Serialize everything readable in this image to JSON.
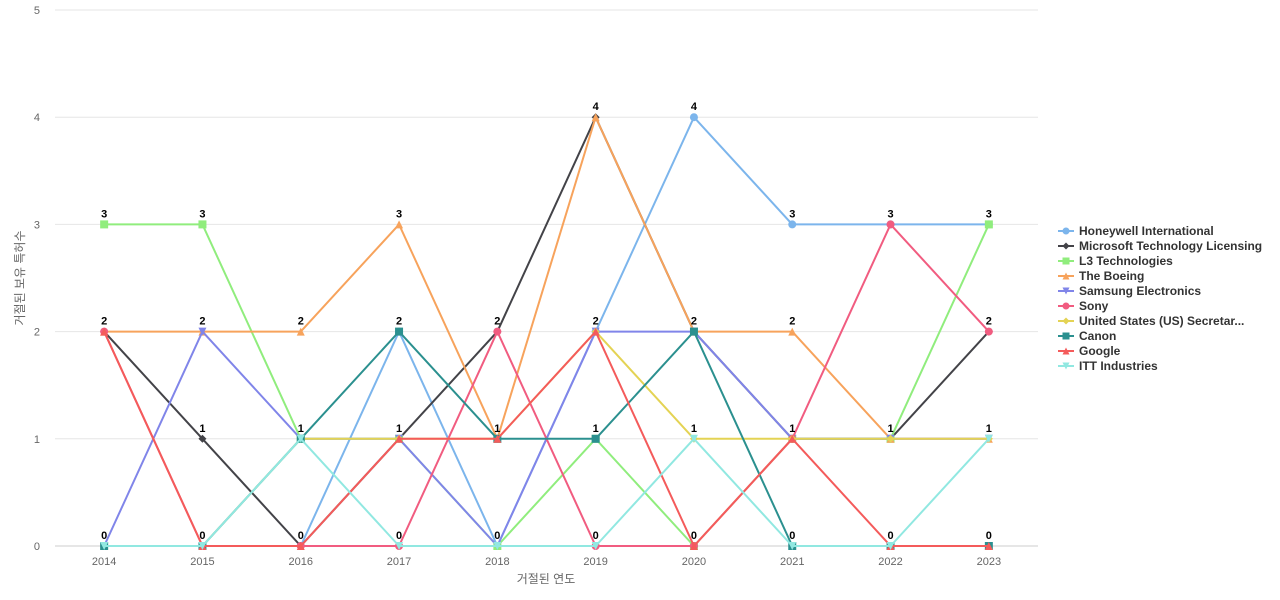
{
  "chart_data": {
    "type": "line",
    "xlabel": "거절된 연도",
    "ylabel": "거절된 보유 특허수",
    "ylim": [
      0,
      5
    ],
    "yticks": [
      0,
      1,
      2,
      3,
      4,
      5
    ],
    "categories": [
      "2014",
      "2015",
      "2016",
      "2017",
      "2018",
      "2019",
      "2020",
      "2021",
      "2022",
      "2023"
    ],
    "grid": true,
    "legend_position": "right",
    "series": [
      {
        "name": "Honeywell International",
        "color": "#7cb5ec",
        "marker": "circle",
        "values": [
          0,
          0,
          0,
          2,
          0,
          2,
          4,
          3,
          3,
          3
        ]
      },
      {
        "name": "Microsoft Technology Licensing",
        "color": "#434348",
        "marker": "diamond",
        "values": [
          2,
          1,
          0,
          1,
          2,
          4,
          2,
          1,
          1,
          2
        ]
      },
      {
        "name": "L3 Technologies",
        "color": "#90ed7d",
        "marker": "square",
        "values": [
          3,
          3,
          1,
          1,
          0,
          1,
          0,
          1,
          1,
          3
        ]
      },
      {
        "name": "The Boeing",
        "color": "#f7a35c",
        "marker": "triangle",
        "values": [
          2,
          2,
          2,
          3,
          1,
          4,
          2,
          2,
          1,
          1
        ]
      },
      {
        "name": "Samsung Electronics",
        "color": "#8085e9",
        "marker": "triangle-down",
        "values": [
          0,
          2,
          1,
          1,
          0,
          2,
          2,
          1,
          1,
          1
        ]
      },
      {
        "name": "Sony",
        "color": "#f15c80",
        "marker": "circle",
        "values": [
          2,
          0,
          0,
          0,
          2,
          0,
          0,
          1,
          3,
          2
        ]
      },
      {
        "name": "United States (US) Secretar...",
        "color": "#e4d354",
        "marker": "diamond",
        "values": [
          0,
          0,
          1,
          1,
          1,
          2,
          1,
          1,
          1,
          1
        ]
      },
      {
        "name": "Canon",
        "color": "#2b908f",
        "marker": "square",
        "values": [
          0,
          0,
          1,
          2,
          1,
          1,
          2,
          0,
          0,
          0
        ]
      },
      {
        "name": "Google",
        "color": "#f45b5b",
        "marker": "triangle",
        "values": [
          2,
          0,
          0,
          1,
          1,
          2,
          0,
          1,
          0,
          0
        ]
      },
      {
        "name": "ITT Industries",
        "color": "#91e8e1",
        "marker": "triangle-down",
        "values": [
          0,
          0,
          1,
          0,
          0,
          0,
          1,
          0,
          0,
          1
        ]
      }
    ],
    "data_labels": [
      {
        "x": "2014",
        "y": 3,
        "text": "3"
      },
      {
        "x": "2014",
        "y": 2,
        "text": "2"
      },
      {
        "x": "2014",
        "y": 0,
        "text": "0"
      },
      {
        "x": "2015",
        "y": 3,
        "text": "3"
      },
      {
        "x": "2015",
        "y": 2,
        "text": "2"
      },
      {
        "x": "2015",
        "y": 1,
        "text": "1"
      },
      {
        "x": "2015",
        "y": 0,
        "text": "0"
      },
      {
        "x": "2016",
        "y": 2,
        "text": "2"
      },
      {
        "x": "2016",
        "y": 1,
        "text": "1"
      },
      {
        "x": "2016",
        "y": 0,
        "text": "0"
      },
      {
        "x": "2017",
        "y": 3,
        "text": "3"
      },
      {
        "x": "2017",
        "y": 2,
        "text": "2"
      },
      {
        "x": "2017",
        "y": 1,
        "text": "1"
      },
      {
        "x": "2017",
        "y": 0,
        "text": "0"
      },
      {
        "x": "2018",
        "y": 2,
        "text": "2"
      },
      {
        "x": "2018",
        "y": 1,
        "text": "1"
      },
      {
        "x": "2018",
        "y": 0,
        "text": "0"
      },
      {
        "x": "2019",
        "y": 4,
        "text": "4"
      },
      {
        "x": "2019",
        "y": 2,
        "text": "2"
      },
      {
        "x": "2019",
        "y": 1,
        "text": "1"
      },
      {
        "x": "2019",
        "y": 0,
        "text": "0"
      },
      {
        "x": "2020",
        "y": 4,
        "text": "4"
      },
      {
        "x": "2020",
        "y": 2,
        "text": "2"
      },
      {
        "x": "2020",
        "y": 1,
        "text": "1"
      },
      {
        "x": "2020",
        "y": 0,
        "text": "0"
      },
      {
        "x": "2021",
        "y": 3,
        "text": "3"
      },
      {
        "x": "2021",
        "y": 2,
        "text": "2"
      },
      {
        "x": "2021",
        "y": 1,
        "text": "1"
      },
      {
        "x": "2021",
        "y": 0,
        "text": "0"
      },
      {
        "x": "2022",
        "y": 3,
        "text": "3"
      },
      {
        "x": "2022",
        "y": 1,
        "text": "1"
      },
      {
        "x": "2022",
        "y": 0,
        "text": "0"
      },
      {
        "x": "2023",
        "y": 3,
        "text": "3"
      },
      {
        "x": "2023",
        "y": 2,
        "text": "2"
      },
      {
        "x": "2023",
        "y": 1,
        "text": "1"
      },
      {
        "x": "2023",
        "y": 0,
        "text": "0"
      }
    ]
  }
}
